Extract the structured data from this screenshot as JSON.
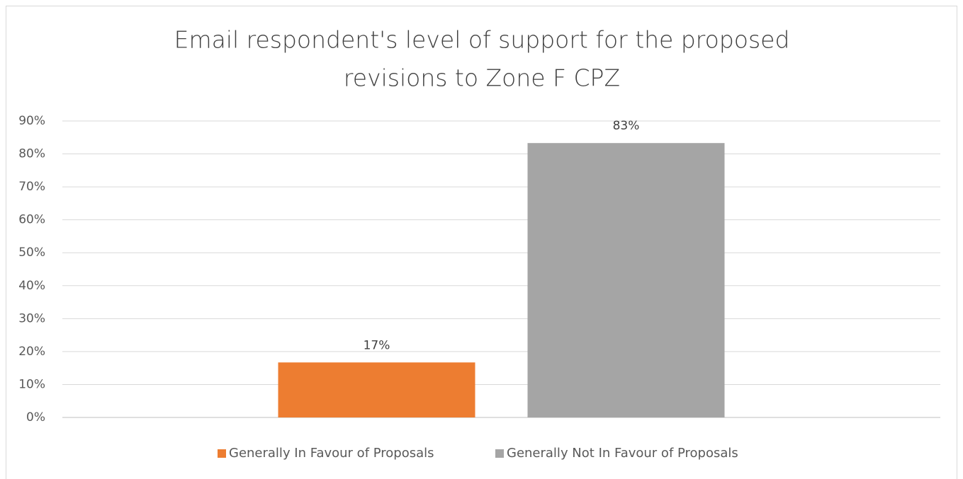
{
  "chart_data": {
    "type": "bar",
    "title": [
      "Email respondent's level of support for the proposed",
      "revisions to Zone F CPZ"
    ],
    "categories": [
      null
    ],
    "series": [
      {
        "name": "Generally In Favour of Proposals",
        "color": "#ed7d31",
        "values": [
          16.7
        ],
        "value_labels": [
          "17%"
        ]
      },
      {
        "name": "Generally Not In Favour of Proposals",
        "color": "#a5a5a5",
        "values": [
          83.3
        ],
        "value_labels": [
          "83%"
        ]
      }
    ],
    "ylim": [
      0,
      90
    ],
    "yticks": [
      {
        "value": 0,
        "label": "0%"
      },
      {
        "value": 10,
        "label": "10%"
      },
      {
        "value": 20,
        "label": "20%"
      },
      {
        "value": 30,
        "label": "30%"
      },
      {
        "value": 40,
        "label": "40%"
      },
      {
        "value": 50,
        "label": "50%"
      },
      {
        "value": 60,
        "label": "60%"
      },
      {
        "value": 70,
        "label": "70%"
      },
      {
        "value": 80,
        "label": "80%"
      },
      {
        "value": 90,
        "label": "90%"
      }
    ],
    "grid": true,
    "legend": "bottom"
  }
}
